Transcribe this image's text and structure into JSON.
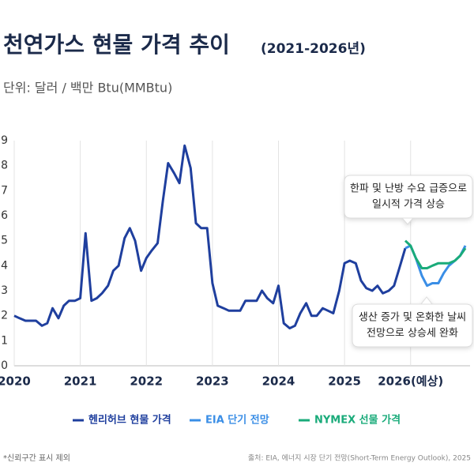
{
  "chart_data": {
    "type": "line",
    "title": "천연가스 현물 가격 추이",
    "title_suffix": "(2021-2026년)",
    "subtitle": "단위: 달러 / 백만 Btu(MMBtu)",
    "xlim": [
      2020,
      2026.9
    ],
    "xticks": [
      2020,
      2021,
      2022,
      2023,
      2024,
      2025,
      {
        "value": 2026,
        "label": "2026(예상)"
      }
    ],
    "ylim": [
      0,
      9
    ],
    "yticks": [
      0,
      1,
      2,
      3,
      4,
      5,
      6,
      7,
      8,
      9
    ],
    "grid": true,
    "series": [
      {
        "name": "헨리허브 현물 가격",
        "color": "#1f3f9e",
        "x": [
          2020,
          2020.08,
          2020.17,
          2020.25,
          2020.33,
          2020.42,
          2020.5,
          2020.58,
          2020.67,
          2020.75,
          2020.83,
          2020.92,
          2021,
          2021.08,
          2021.17,
          2021.25,
          2021.33,
          2021.42,
          2021.5,
          2021.58,
          2021.67,
          2021.75,
          2021.83,
          2021.92,
          2022,
          2022.08,
          2022.17,
          2022.25,
          2022.33,
          2022.42,
          2022.5,
          2022.58,
          2022.67,
          2022.75,
          2022.83,
          2022.92,
          2023,
          2023.08,
          2023.17,
          2023.25,
          2023.33,
          2023.42,
          2023.5,
          2023.58,
          2023.67,
          2023.75,
          2023.83,
          2023.92,
          2024,
          2024.08,
          2024.17,
          2024.25,
          2024.33,
          2024.42,
          2024.5,
          2024.58,
          2024.67,
          2024.75,
          2024.83,
          2024.92,
          2025,
          2025.08,
          2025.17,
          2025.25,
          2025.33,
          2025.42,
          2025.5,
          2025.58,
          2025.67,
          2025.75,
          2025.83,
          2025.92
        ],
        "values": [
          2.0,
          1.9,
          1.8,
          1.8,
          1.8,
          1.6,
          1.7,
          2.3,
          1.9,
          2.4,
          2.6,
          2.6,
          2.7,
          5.3,
          2.6,
          2.7,
          2.9,
          3.2,
          3.8,
          4.0,
          5.1,
          5.5,
          5.0,
          3.8,
          4.3,
          4.6,
          4.9,
          6.6,
          8.1,
          7.7,
          7.3,
          8.8,
          7.9,
          5.7,
          5.5,
          5.5,
          3.3,
          2.4,
          2.3,
          2.2,
          2.2,
          2.2,
          2.6,
          2.6,
          2.6,
          3.0,
          2.7,
          2.5,
          3.2,
          1.7,
          1.5,
          1.6,
          2.1,
          2.5,
          2.0,
          2.0,
          2.3,
          2.2,
          2.1,
          3.0,
          4.1,
          4.2,
          4.1,
          3.4,
          3.1,
          3.0,
          3.2,
          2.9,
          3.0,
          3.2,
          3.9,
          4.7
        ]
      },
      {
        "name": "EIA 단기 전망",
        "color": "#3a8ee6",
        "x": [
          2025.92,
          2026,
          2026.08,
          2026.17,
          2026.25,
          2026.33,
          2026.42,
          2026.5,
          2026.58,
          2026.67,
          2026.75,
          2026.83
        ],
        "values": [
          4.7,
          4.8,
          4.3,
          3.6,
          3.2,
          3.3,
          3.3,
          3.7,
          4.0,
          4.2,
          4.4,
          4.8
        ]
      },
      {
        "name": "NYMEX 선물 가격",
        "color": "#1aab7a",
        "x": [
          2025.92,
          2026,
          2026.08,
          2026.17,
          2026.25,
          2026.33,
          2026.42,
          2026.5,
          2026.58,
          2026.67,
          2026.75,
          2026.83
        ],
        "values": [
          5.0,
          4.8,
          4.3,
          3.9,
          3.9,
          4.0,
          4.1,
          4.1,
          4.1,
          4.2,
          4.4,
          4.7
        ]
      }
    ],
    "annotations": [
      {
        "lines": [
          "한파 및 난방 수요 급증으로",
          "일시적 가격 상승"
        ]
      },
      {
        "lines": [
          "생산 증가 및 온화한 날씨",
          "전망으로 상승세 완화"
        ]
      }
    ],
    "footnote": "*신뢰구간 표시 제외",
    "source": "출처: EIA, 에너지 시장 단기 전망(Short-Term Energy Outlook), 2025"
  }
}
